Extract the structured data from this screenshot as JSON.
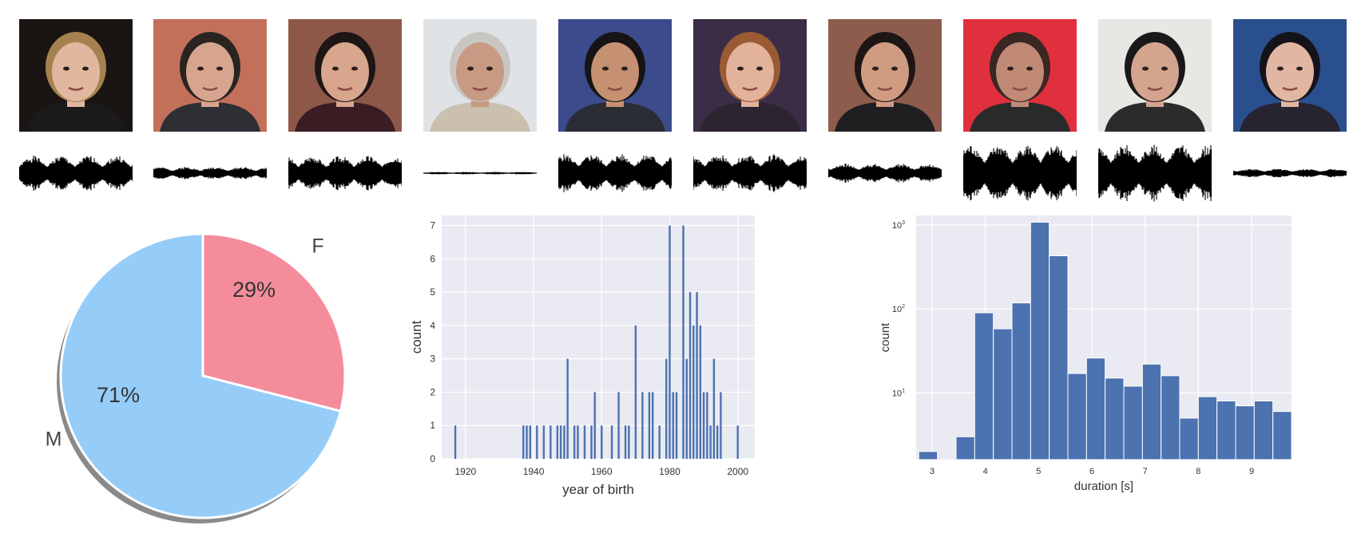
{
  "thumbnails": [
    {
      "bg": "#1a1412",
      "skin": "#e2b7a0",
      "hair": "#a4824f",
      "shirt": "#1a1a1a"
    },
    {
      "bg": "#c3705b",
      "skin": "#d7a58f",
      "hair": "#2a2420",
      "shirt": "#2e2e35"
    },
    {
      "bg": "#8e5849",
      "skin": "#d8a58d",
      "hair": "#1d1614",
      "shirt": "#3a1d22"
    },
    {
      "bg": "#dfe3e6",
      "skin": "#c89a84",
      "hair": "#c9c6c2",
      "shirt": "#cbc0b0"
    },
    {
      "bg": "#3c4b8c",
      "skin": "#c69172",
      "hair": "#161414",
      "shirt": "#2a2d34"
    },
    {
      "bg": "#3b2d46",
      "skin": "#e3b29b",
      "hair": "#9a5a34",
      "shirt": "#2c2430"
    },
    {
      "bg": "#8d5c4d",
      "skin": "#cf9c82",
      "hair": "#1d1614",
      "shirt": "#1f1f22"
    },
    {
      "bg": "#e0303d",
      "skin": "#c18a77",
      "hair": "#3a2622",
      "shirt": "#2a2a2a"
    },
    {
      "bg": "#e7e7e4",
      "skin": "#d4a48e",
      "hair": "#1a1818",
      "shirt": "#2b2b2b"
    },
    {
      "bg": "#2a4f8f",
      "skin": "#e1b6a2",
      "hair": "#15131a",
      "shirt": "#272330"
    }
  ],
  "chart_data": [
    {
      "type": "pie",
      "slices": [
        {
          "label": "F",
          "value": 29,
          "pct_label": "29%",
          "color": "#f48c9c"
        },
        {
          "label": "M",
          "value": 71,
          "pct_label": "71%",
          "color": "#96ccf8"
        }
      ]
    },
    {
      "type": "bar",
      "xlabel": "year of birth",
      "ylabel": "count",
      "xlim": [
        1913,
        2005
      ],
      "ylim": [
        0,
        7.3
      ],
      "x_ticks": [
        1920,
        1940,
        1960,
        1980,
        2000
      ],
      "y_ticks": [
        0,
        1,
        2,
        3,
        4,
        5,
        6,
        7
      ],
      "x": [
        1917,
        1937,
        1938,
        1939,
        1941,
        1943,
        1945,
        1947,
        1948,
        1949,
        1950,
        1952,
        1953,
        1955,
        1957,
        1958,
        1960,
        1963,
        1965,
        1967,
        1968,
        1970,
        1972,
        1974,
        1975,
        1977,
        1979,
        1980,
        1981,
        1982,
        1984,
        1985,
        1986,
        1987,
        1988,
        1989,
        1990,
        1991,
        1992,
        1993,
        1994,
        1995,
        2000
      ],
      "values": [
        1,
        1,
        1,
        1,
        1,
        1,
        1,
        1,
        1,
        1,
        3,
        1,
        1,
        1,
        1,
        2,
        1,
        1,
        2,
        1,
        1,
        4,
        2,
        2,
        2,
        1,
        3,
        7,
        2,
        2,
        7,
        3,
        5,
        4,
        5,
        4,
        2,
        2,
        1,
        3,
        1,
        2,
        1
      ],
      "color": "#4c72b0"
    },
    {
      "type": "bar",
      "xlabel": "duration [s]",
      "ylabel": "count",
      "yscale": "log",
      "xlim": [
        2.7,
        9.75
      ],
      "ylim": [
        1.6,
        1300
      ],
      "x_ticks": [
        3,
        4,
        5,
        6,
        7,
        8,
        9
      ],
      "y_ticks": [
        {
          "value": 10,
          "base": "10",
          "exp": "1"
        },
        {
          "value": 100,
          "base": "10",
          "exp": "2"
        },
        {
          "value": 1000,
          "base": "10",
          "exp": "3"
        }
      ],
      "bin_start": 2.75,
      "bin_width": 0.35,
      "values": [
        2,
        0,
        3,
        90,
        58,
        118,
        1080,
        430,
        17,
        26,
        15,
        12,
        22,
        16,
        5,
        9,
        8,
        7,
        8,
        6
      ],
      "color": "#4c72b0"
    }
  ]
}
